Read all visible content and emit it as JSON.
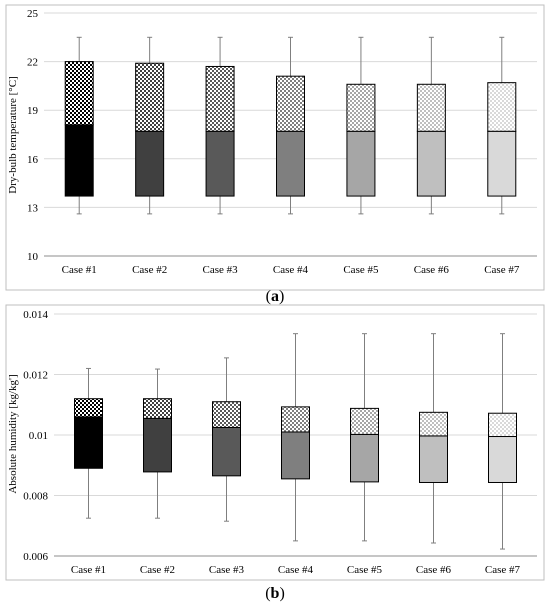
{
  "chart_data": [
    {
      "type": "box",
      "panel_label": "a",
      "xlabel": "",
      "ylabel": "Dry-bulb temperature [°C]",
      "ylim": [
        10,
        25
      ],
      "yticks": [
        10,
        13,
        16,
        19,
        22,
        25
      ],
      "ytick_labels": [
        "10",
        "13",
        "16",
        "19",
        "22",
        "25"
      ],
      "grid": true,
      "categories": [
        "Case #1",
        "Case #2",
        "Case #3",
        "Case #4",
        "Case #5",
        "Case #6",
        "Case #7"
      ],
      "colors": [
        "#000000",
        "#404040",
        "#595959",
        "#7f7f7f",
        "#a6a6a6",
        "#bfbfbf",
        "#d9d9d9"
      ],
      "boxes": [
        {
          "min": 12.6,
          "q1": 13.7,
          "median": 18.1,
          "q3": 22.0,
          "max": 23.5
        },
        {
          "min": 12.6,
          "q1": 13.7,
          "median": 17.7,
          "q3": 21.9,
          "max": 23.5
        },
        {
          "min": 12.6,
          "q1": 13.7,
          "median": 17.7,
          "q3": 21.7,
          "max": 23.5
        },
        {
          "min": 12.6,
          "q1": 13.7,
          "median": 17.7,
          "q3": 21.1,
          "max": 23.5
        },
        {
          "min": 12.6,
          "q1": 13.7,
          "median": 17.7,
          "q3": 20.6,
          "max": 23.5
        },
        {
          "min": 12.6,
          "q1": 13.7,
          "median": 17.7,
          "q3": 20.6,
          "max": 23.5
        },
        {
          "min": 12.6,
          "q1": 13.7,
          "median": 17.7,
          "q3": 20.7,
          "max": 23.5
        }
      ]
    },
    {
      "type": "box",
      "panel_label": "b",
      "xlabel": "",
      "ylabel": "Absolute humidity [kg/kg']",
      "ylim": [
        0.006,
        0.014
      ],
      "yticks": [
        0.006,
        0.008,
        0.01,
        0.012,
        0.014
      ],
      "ytick_labels": [
        "0.006",
        "0.008",
        "0.01",
        "0.012",
        "0.014"
      ],
      "grid": true,
      "categories": [
        "Case #1",
        "Case #2",
        "Case #3",
        "Case #4",
        "Case #5",
        "Case #6",
        "Case #7"
      ],
      "colors": [
        "#000000",
        "#404040",
        "#595959",
        "#7f7f7f",
        "#a6a6a6",
        "#bfbfbf",
        "#d9d9d9"
      ],
      "boxes": [
        {
          "min": 0.00725,
          "q1": 0.0089,
          "median": 0.0106,
          "q3": 0.0112,
          "max": 0.0122
        },
        {
          "min": 0.00725,
          "q1": 0.00878,
          "median": 0.01055,
          "q3": 0.0112,
          "max": 0.01218
        },
        {
          "min": 0.00715,
          "q1": 0.00865,
          "median": 0.01025,
          "q3": 0.0111,
          "max": 0.01255
        },
        {
          "min": 0.0065,
          "q1": 0.00855,
          "median": 0.0101,
          "q3": 0.01093,
          "max": 0.01335
        },
        {
          "min": 0.0065,
          "q1": 0.00845,
          "median": 0.01002,
          "q3": 0.01088,
          "max": 0.01335
        },
        {
          "min": 0.00643,
          "q1": 0.00843,
          "median": 0.00997,
          "q3": 0.01075,
          "max": 0.01335
        },
        {
          "min": 0.00623,
          "q1": 0.00843,
          "median": 0.00995,
          "q3": 0.01072,
          "max": 0.01335
        }
      ]
    }
  ]
}
